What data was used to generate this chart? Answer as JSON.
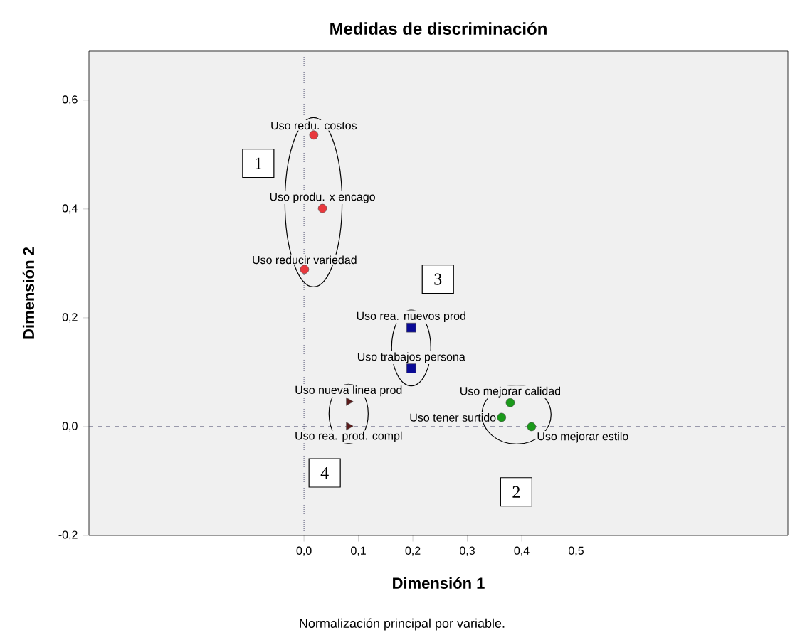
{
  "chart_data": {
    "type": "scatter",
    "title": "Medidas de discriminación",
    "xlabel": "Dimensión 1",
    "ylabel": "Dimensión 2",
    "xlim": [
      -0.395,
      0.889
    ],
    "ylim": [
      -0.2,
      0.69
    ],
    "xticks": [
      {
        "value": 0,
        "label": "0,0"
      },
      {
        "value": 0.1,
        "label": "0,1"
      },
      {
        "value": 0.2,
        "label": "0,2"
      },
      {
        "value": 0.3,
        "label": "0,3"
      },
      {
        "value": 0.4,
        "label": "0,4"
      },
      {
        "value": 0.5,
        "label": "0,5"
      }
    ],
    "yticks": [
      {
        "value": -0.2,
        "label": "-0,2"
      },
      {
        "value": 0,
        "label": "0,0"
      },
      {
        "value": 0.2,
        "label": "0,2"
      },
      {
        "value": 0.4,
        "label": "0,4"
      },
      {
        "value": 0.6,
        "label": "0,6"
      }
    ],
    "grid": false,
    "series": [
      {
        "color": "#e8383d",
        "marker": "circle",
        "x": [
          0.018,
          0.034,
          0.001
        ],
        "values": [
          0.536,
          0.401,
          0.289
        ]
      },
      {
        "color": "#0a0a96",
        "marker": "square",
        "x": [
          0.197,
          0.197
        ],
        "values": [
          0.182,
          0.107
        ]
      },
      {
        "color": "#5a1a1a",
        "marker": "triangle",
        "x": [
          0.082,
          0.082
        ],
        "values": [
          0.046,
          0.001
        ]
      },
      {
        "color": "#1a9a1a",
        "marker": "circle",
        "x": [
          0.379,
          0.363,
          0.418
        ],
        "values": [
          0.044,
          0.017,
          0.0
        ]
      }
    ],
    "ref_lines": [
      {
        "axis": "x",
        "value": 0,
        "line_style": "dotted",
        "color": "#505070"
      },
      {
        "axis": "y",
        "value": 0,
        "line_style": "dashed",
        "color": "#505070"
      }
    ],
    "annotations": [
      {
        "text": "Uso redu. costos",
        "x": 0.018,
        "y": 0.536
      },
      {
        "text": "Uso produ. x encago",
        "x": 0.034,
        "y": 0.401
      },
      {
        "text": "Uso reducir variedad",
        "x": 0.001,
        "y": 0.289
      },
      {
        "text": "Uso rea. nuevos prod",
        "x": 0.197,
        "y": 0.182
      },
      {
        "text": "Uso trabajos persona",
        "x": 0.197,
        "y": 0.107
      },
      {
        "text": "Uso nueva linea prod",
        "x": 0.082,
        "y": 0.046
      },
      {
        "text": "Uso rea. prod. compl",
        "x": 0.082,
        "y": 0.001
      },
      {
        "text": "Uso mejorar calidad",
        "x": 0.379,
        "y": 0.044
      },
      {
        "text": "Uso tener surtido",
        "x": 0.363,
        "y": 0.017
      },
      {
        "text": "Uso mejorar estilo",
        "x": 0.418,
        "y": 0.0
      },
      {
        "text": "1",
        "x": -0.084,
        "y": 0.484
      },
      {
        "text": "3",
        "x": 0.246,
        "y": 0.271
      },
      {
        "text": "4",
        "x": 0.038,
        "y": -0.085
      },
      {
        "text": "2",
        "x": 0.39,
        "y": -0.12
      },
      "Normalización principal por variable."
    ]
  }
}
